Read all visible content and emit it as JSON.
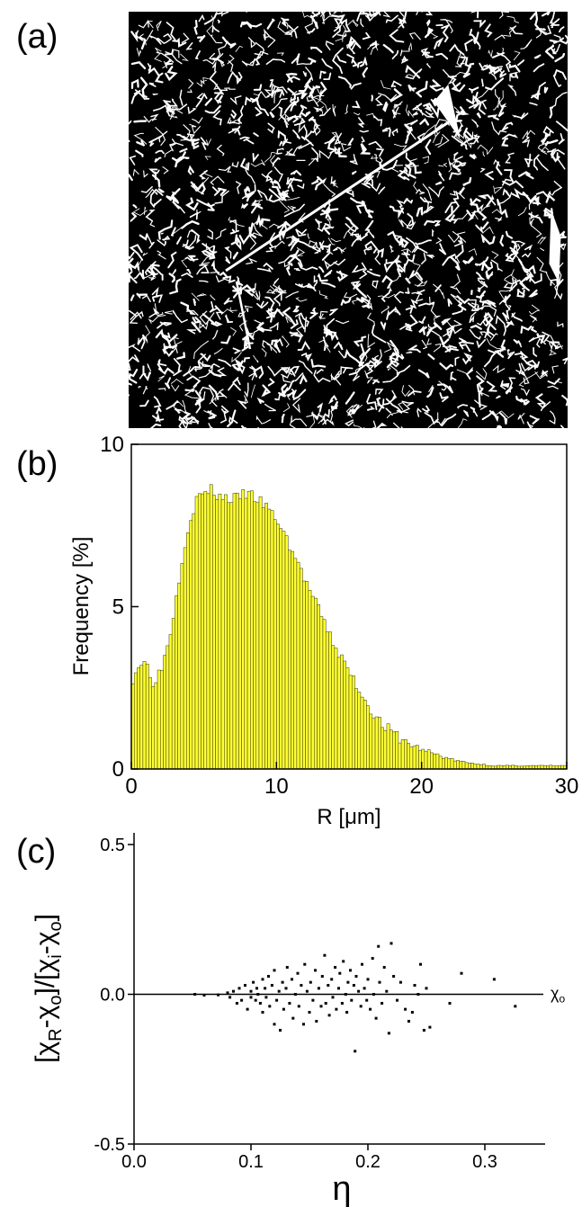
{
  "panels": {
    "a": {
      "label": "(a)"
    },
    "b": {
      "label": "(b)"
    },
    "c": {
      "label": "(c)"
    }
  },
  "chart_data": [
    {
      "type": "bar",
      "panel": "b",
      "xlabel": "R [μm]",
      "ylabel": "Frequency [%]",
      "xlim": [
        0,
        30
      ],
      "ylim": [
        0,
        10
      ],
      "xticks": [
        "0",
        "10",
        "20",
        "30"
      ],
      "yticks": [
        "0",
        "5",
        "10"
      ],
      "bar_color": "#ffff33",
      "bar_edge": "#333300",
      "bin_width": 0.2,
      "key_points": [
        [
          0.0,
          2.7
        ],
        [
          0.5,
          3.2
        ],
        [
          1.0,
          3.3
        ],
        [
          1.5,
          2.7
        ],
        [
          2.0,
          3.0
        ],
        [
          2.5,
          3.8
        ],
        [
          3.0,
          5.0
        ],
        [
          3.5,
          6.5
        ],
        [
          4.0,
          7.6
        ],
        [
          4.5,
          8.3
        ],
        [
          5.0,
          8.5
        ],
        [
          5.5,
          8.6
        ],
        [
          6.0,
          8.4
        ],
        [
          7.0,
          8.3
        ],
        [
          8.0,
          8.5
        ],
        [
          9.0,
          8.2
        ],
        [
          10.0,
          7.7
        ],
        [
          11.0,
          6.8
        ],
        [
          12.0,
          5.8
        ],
        [
          13.0,
          4.8
        ],
        [
          14.0,
          3.8
        ],
        [
          15.0,
          3.0
        ],
        [
          16.0,
          2.2
        ],
        [
          17.0,
          1.5
        ],
        [
          18.0,
          1.1
        ],
        [
          19.0,
          0.8
        ],
        [
          20.0,
          0.6
        ],
        [
          21.0,
          0.45
        ],
        [
          22.0,
          0.3
        ],
        [
          23.0,
          0.2
        ],
        [
          24.0,
          0.15
        ],
        [
          25.0,
          0.1
        ],
        [
          27.0,
          0.1
        ],
        [
          30.0,
          0.1
        ]
      ]
    },
    {
      "type": "scatter",
      "panel": "c",
      "xlabel": "η",
      "ylabel": "[χR-χo]/[χi-χo]",
      "xlim": [
        0.0,
        0.35
      ],
      "ylim": [
        -0.5,
        0.5
      ],
      "xticks": [
        "0.0",
        "0.1",
        "0.2",
        "0.3"
      ],
      "yticks": [
        "-0.5",
        "0.0",
        "0.5"
      ],
      "reference_line": {
        "y": 0.0,
        "label": "χo"
      },
      "points": [
        [
          0.052,
          0.0
        ],
        [
          0.06,
          -0.003
        ],
        [
          0.072,
          -0.002
        ],
        [
          0.08,
          0.005
        ],
        [
          0.082,
          -0.01
        ],
        [
          0.085,
          0.01
        ],
        [
          0.088,
          -0.03
        ],
        [
          0.09,
          0.02
        ],
        [
          0.092,
          -0.02
        ],
        [
          0.095,
          0.03
        ],
        [
          0.097,
          -0.05
        ],
        [
          0.1,
          0.01
        ],
        [
          0.1,
          -0.01
        ],
        [
          0.102,
          0.04
        ],
        [
          0.104,
          -0.02
        ],
        [
          0.105,
          0.02
        ],
        [
          0.106,
          0.0
        ],
        [
          0.108,
          -0.03
        ],
        [
          0.11,
          0.05
        ],
        [
          0.11,
          -0.06
        ],
        [
          0.112,
          0.02
        ],
        [
          0.113,
          -0.01
        ],
        [
          0.115,
          0.06
        ],
        [
          0.116,
          -0.04
        ],
        [
          0.118,
          0.03
        ],
        [
          0.12,
          -0.1
        ],
        [
          0.12,
          0.08
        ],
        [
          0.122,
          -0.02
        ],
        [
          0.124,
          0.01
        ],
        [
          0.125,
          -0.12
        ],
        [
          0.127,
          0.04
        ],
        [
          0.128,
          -0.05
        ],
        [
          0.13,
          0.02
        ],
        [
          0.131,
          0.09
        ],
        [
          0.133,
          -0.03
        ],
        [
          0.135,
          0.05
        ],
        [
          0.136,
          -0.08
        ],
        [
          0.138,
          0.0
        ],
        [
          0.14,
          0.07
        ],
        [
          0.141,
          -0.04
        ],
        [
          0.143,
          0.03
        ],
        [
          0.145,
          -0.1
        ],
        [
          0.146,
          0.1
        ],
        [
          0.148,
          0.01
        ],
        [
          0.15,
          -0.06
        ],
        [
          0.151,
          0.04
        ],
        [
          0.153,
          -0.02
        ],
        [
          0.155,
          0.08
        ],
        [
          0.156,
          -0.09
        ],
        [
          0.158,
          0.02
        ],
        [
          0.16,
          -0.04
        ],
        [
          0.161,
          0.06
        ],
        [
          0.163,
          0.13
        ],
        [
          0.164,
          -0.03
        ],
        [
          0.166,
          0.03
        ],
        [
          0.167,
          -0.07
        ],
        [
          0.169,
          0.05
        ],
        [
          0.17,
          -0.01
        ],
        [
          0.172,
          0.09
        ],
        [
          0.173,
          -0.05
        ],
        [
          0.175,
          0.02
        ],
        [
          0.176,
          0.07
        ],
        [
          0.178,
          -0.03
        ],
        [
          0.179,
          0.11
        ],
        [
          0.181,
          0.0
        ],
        [
          0.182,
          -0.06
        ],
        [
          0.183,
          0.04
        ],
        [
          0.185,
          0.08
        ],
        [
          0.186,
          -0.02
        ],
        [
          0.188,
          0.03
        ],
        [
          0.189,
          -0.19
        ],
        [
          0.19,
          0.06
        ],
        [
          0.192,
          0.01
        ],
        [
          0.194,
          -0.04
        ],
        [
          0.195,
          0.1
        ],
        [
          0.197,
          0.02
        ],
        [
          0.199,
          -0.02
        ],
        [
          0.2,
          0.05
        ],
        [
          0.202,
          -0.05
        ],
        [
          0.204,
          0.12
        ],
        [
          0.205,
          0.0
        ],
        [
          0.207,
          -0.08
        ],
        [
          0.209,
          0.16
        ],
        [
          0.21,
          0.04
        ],
        [
          0.212,
          -0.03
        ],
        [
          0.214,
          0.09
        ],
        [
          0.216,
          0.01
        ],
        [
          0.218,
          -0.13
        ],
        [
          0.22,
          0.17
        ],
        [
          0.222,
          0.06
        ],
        [
          0.225,
          -0.02
        ],
        [
          0.228,
          0.04
        ],
        [
          0.232,
          -0.05
        ],
        [
          0.235,
          -0.09
        ],
        [
          0.238,
          -0.06
        ],
        [
          0.24,
          0.03
        ],
        [
          0.243,
          0.0
        ],
        [
          0.245,
          0.1
        ],
        [
          0.248,
          -0.12
        ],
        [
          0.25,
          0.02
        ],
        [
          0.253,
          -0.11
        ],
        [
          0.27,
          -0.03
        ],
        [
          0.28,
          0.07
        ],
        [
          0.308,
          0.05
        ],
        [
          0.326,
          -0.04
        ]
      ]
    }
  ]
}
